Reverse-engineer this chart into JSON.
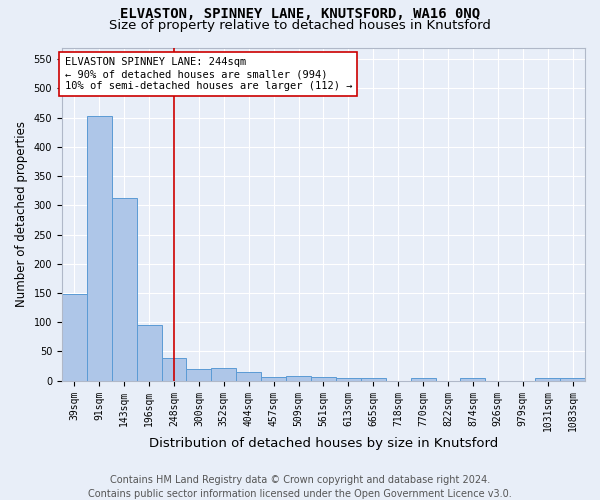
{
  "title": "ELVASTON, SPINNEY LANE, KNUTSFORD, WA16 0NQ",
  "subtitle": "Size of property relative to detached houses in Knutsford",
  "xlabel": "Distribution of detached houses by size in Knutsford",
  "ylabel": "Number of detached properties",
  "footer_line1": "Contains HM Land Registry data © Crown copyright and database right 2024.",
  "footer_line2": "Contains public sector information licensed under the Open Government Licence v3.0.",
  "categories": [
    "39sqm",
    "91sqm",
    "143sqm",
    "196sqm",
    "248sqm",
    "300sqm",
    "352sqm",
    "404sqm",
    "457sqm",
    "509sqm",
    "561sqm",
    "613sqm",
    "665sqm",
    "718sqm",
    "770sqm",
    "822sqm",
    "874sqm",
    "926sqm",
    "979sqm",
    "1031sqm",
    "1083sqm"
  ],
  "values": [
    148,
    452,
    313,
    95,
    38,
    20,
    22,
    14,
    6,
    8,
    6,
    5,
    4,
    0,
    5,
    0,
    5,
    0,
    0,
    4,
    4
  ],
  "bar_color": "#aec6e8",
  "bar_edge_color": "#5b9bd5",
  "vline_x": 4.0,
  "vline_color": "#cc0000",
  "annotation_text": "ELVASTON SPINNEY LANE: 244sqm\n← 90% of detached houses are smaller (994)\n10% of semi-detached houses are larger (112) →",
  "annotation_box_color": "#ffffff",
  "annotation_box_edgecolor": "#cc0000",
  "ylim": [
    0,
    570
  ],
  "yticks": [
    0,
    50,
    100,
    150,
    200,
    250,
    300,
    350,
    400,
    450,
    500,
    550
  ],
  "background_color": "#e8eef8",
  "grid_color": "#ffffff",
  "title_fontsize": 10,
  "subtitle_fontsize": 9.5,
  "xlabel_fontsize": 9.5,
  "ylabel_fontsize": 8.5,
  "tick_fontsize": 7,
  "annotation_fontsize": 7.5,
  "footer_fontsize": 7
}
